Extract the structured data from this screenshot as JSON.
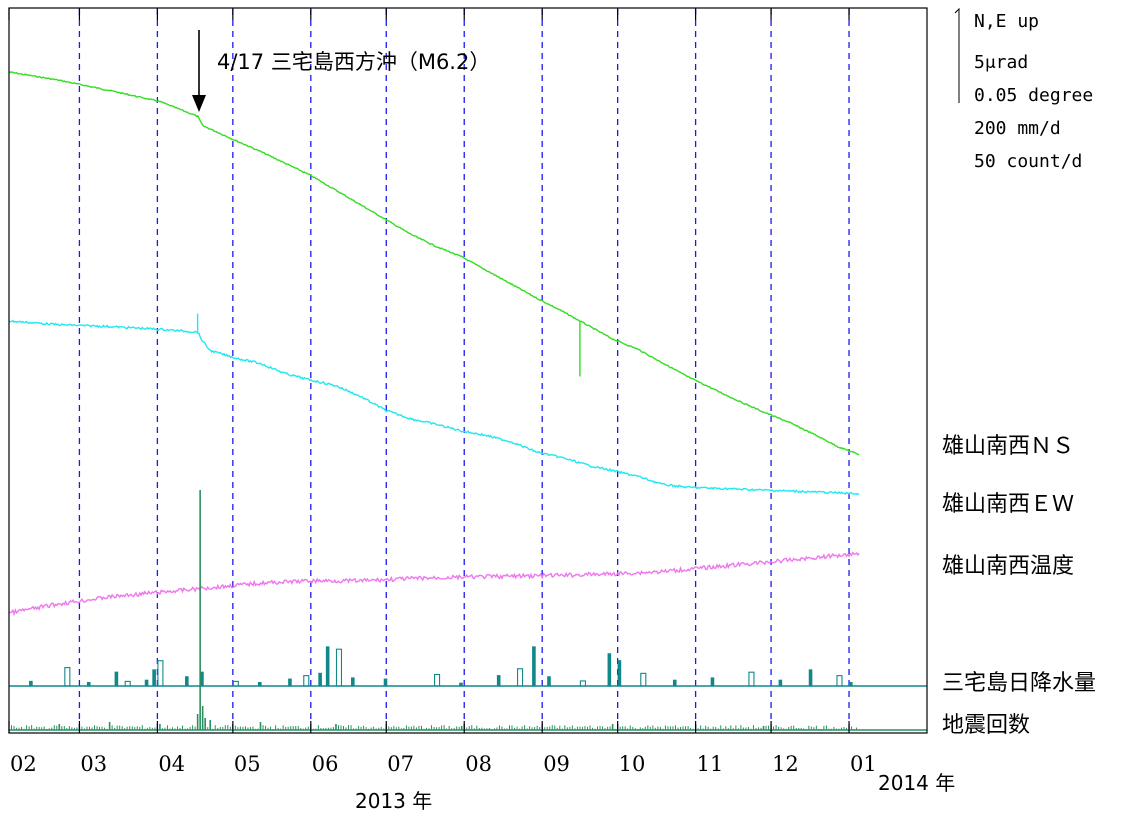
{
  "annotation": {
    "text": "4/17 三宅島西方沖（M6.2）"
  },
  "scale_legend": {
    "lines": [
      "N,E up",
      "5μrad",
      "0.05 degree",
      "200 mm/d",
      "50 count/d"
    ]
  },
  "years": [
    "2013 年",
    "2014 年"
  ],
  "chart_data": {
    "type": "line",
    "x_tick_labels": [
      "02",
      "03",
      "04",
      "05",
      "06",
      "07",
      "08",
      "09",
      "10",
      "11",
      "12",
      "01"
    ],
    "x_range": [
      "2013-02-01",
      "2014-01-31"
    ],
    "month_boundaries": [
      "2013-03",
      "2013-04",
      "2013-05",
      "2013-06",
      "2013-07",
      "2013-08",
      "2013-09",
      "2013-10",
      "2013-11",
      "2013-12",
      "2014-01"
    ],
    "grid": "vertical dashed month lines",
    "event": {
      "date": "2013-04-17",
      "label": "4/17 三宅島西方沖（M6.2）"
    },
    "series": [
      {
        "name": "雄山南西ＮＳ",
        "type": "line",
        "color": "#33dd22",
        "unit": "μrad",
        "points": [
          [
            0,
            0
          ],
          [
            20,
            -0.9
          ],
          [
            40,
            -2.0
          ],
          [
            60,
            -3.2
          ],
          [
            75,
            -4.8
          ],
          [
            77,
            -5.8
          ],
          [
            90,
            -7.4
          ],
          [
            100,
            -8.6
          ],
          [
            110,
            -9.9
          ],
          [
            120,
            -11.2
          ],
          [
            130,
            -12.8
          ],
          [
            140,
            -14.4
          ],
          [
            150,
            -16.0
          ],
          [
            160,
            -17.6
          ],
          [
            170,
            -18.9
          ],
          [
            180,
            -20.0
          ],
          [
            190,
            -21.5
          ],
          [
            200,
            -23.0
          ],
          [
            210,
            -24.5
          ],
          [
            220,
            -25.9
          ],
          [
            230,
            -27.4
          ],
          [
            240,
            -28.9
          ],
          [
            250,
            -30.0
          ],
          [
            260,
            -31.5
          ],
          [
            270,
            -33.0
          ],
          [
            280,
            -34.3
          ],
          [
            290,
            -35.6
          ],
          [
            300,
            -36.8
          ],
          [
            310,
            -37.9
          ],
          [
            320,
            -39.2
          ],
          [
            330,
            -40.6
          ],
          [
            338,
            -41.4
          ]
        ],
        "spike": {
          "day": 227,
          "delta": -6.0
        }
      },
      {
        "name": "雄山南西ＥＷ",
        "type": "line",
        "color": "#22e8ee",
        "unit": "μrad",
        "points": [
          [
            0,
            0
          ],
          [
            20,
            -0.4
          ],
          [
            40,
            -0.6
          ],
          [
            60,
            -0.9
          ],
          [
            75,
            -1.2
          ],
          [
            77,
            -2.2
          ],
          [
            80,
            -3.2
          ],
          [
            90,
            -4.0
          ],
          [
            100,
            -4.6
          ],
          [
            110,
            -5.7
          ],
          [
            120,
            -6.4
          ],
          [
            130,
            -7.0
          ],
          [
            140,
            -8.2
          ],
          [
            150,
            -9.7
          ],
          [
            160,
            -10.6
          ],
          [
            170,
            -11.2
          ],
          [
            180,
            -11.9
          ],
          [
            190,
            -12.4
          ],
          [
            200,
            -13.1
          ],
          [
            210,
            -14.2
          ],
          [
            220,
            -14.8
          ],
          [
            230,
            -15.6
          ],
          [
            240,
            -16.2
          ],
          [
            250,
            -16.8
          ],
          [
            260,
            -17.7
          ],
          [
            270,
            -18.0
          ],
          [
            280,
            -18.1
          ],
          [
            290,
            -18.2
          ],
          [
            300,
            -18.3
          ],
          [
            310,
            -18.4
          ],
          [
            320,
            -18.5
          ],
          [
            330,
            -18.6
          ],
          [
            338,
            -18.7
          ]
        ],
        "spike": {
          "day": 75,
          "delta": 2.0
        }
      },
      {
        "name": "雄山南西温度",
        "type": "line",
        "color": "#ee77ee",
        "unit": "degree",
        "points": [
          [
            0,
            0
          ],
          [
            10,
            0.01
          ],
          [
            20,
            0.02
          ],
          [
            40,
            0.035
          ],
          [
            60,
            0.045
          ],
          [
            80,
            0.055
          ],
          [
            100,
            0.065
          ],
          [
            120,
            0.07
          ],
          [
            140,
            0.07
          ],
          [
            160,
            0.075
          ],
          [
            180,
            0.078
          ],
          [
            200,
            0.08
          ],
          [
            220,
            0.082
          ],
          [
            240,
            0.085
          ],
          [
            260,
            0.09
          ],
          [
            280,
            0.1
          ],
          [
            300,
            0.11
          ],
          [
            320,
            0.12
          ],
          [
            338,
            0.13
          ]
        ]
      },
      {
        "name": "三宅島日降水量",
        "type": "bar",
        "color": "#11888a",
        "unit": "mm/d",
        "bars": [
          [
            9,
            20
          ],
          [
            23,
            80
          ],
          [
            32,
            15
          ],
          [
            43,
            60
          ],
          [
            47,
            20
          ],
          [
            55,
            25
          ],
          [
            58,
            70
          ],
          [
            60,
            110
          ],
          [
            71,
            40
          ],
          [
            77,
            60
          ],
          [
            90,
            20
          ],
          [
            100,
            15
          ],
          [
            112,
            30
          ],
          [
            118,
            45
          ],
          [
            124,
            55
          ],
          [
            127,
            170
          ],
          [
            131,
            160
          ],
          [
            137,
            35
          ],
          [
            150,
            30
          ],
          [
            170,
            50
          ],
          [
            180,
            12
          ],
          [
            195,
            45
          ],
          [
            203,
            75
          ],
          [
            209,
            170
          ],
          [
            215,
            40
          ],
          [
            228,
            22
          ],
          [
            239,
            140
          ],
          [
            243,
            110
          ],
          [
            252,
            55
          ],
          [
            265,
            25
          ],
          [
            280,
            35
          ],
          [
            295,
            60
          ],
          [
            307,
            25
          ],
          [
            319,
            70
          ],
          [
            330,
            45
          ],
          [
            335,
            15
          ]
        ]
      },
      {
        "name": "地震回数",
        "type": "bar",
        "color": "#2a9060",
        "unit": "count/d",
        "bars": [
          [
            20,
            3
          ],
          [
            40,
            4
          ],
          [
            60,
            3
          ],
          [
            75,
            8
          ],
          [
            76,
            120
          ],
          [
            77,
            12
          ],
          [
            78,
            6
          ],
          [
            80,
            5
          ],
          [
            100,
            4
          ],
          [
            130,
            3
          ],
          [
            180,
            2
          ],
          [
            240,
            3
          ],
          [
            300,
            2
          ]
        ]
      }
    ]
  }
}
